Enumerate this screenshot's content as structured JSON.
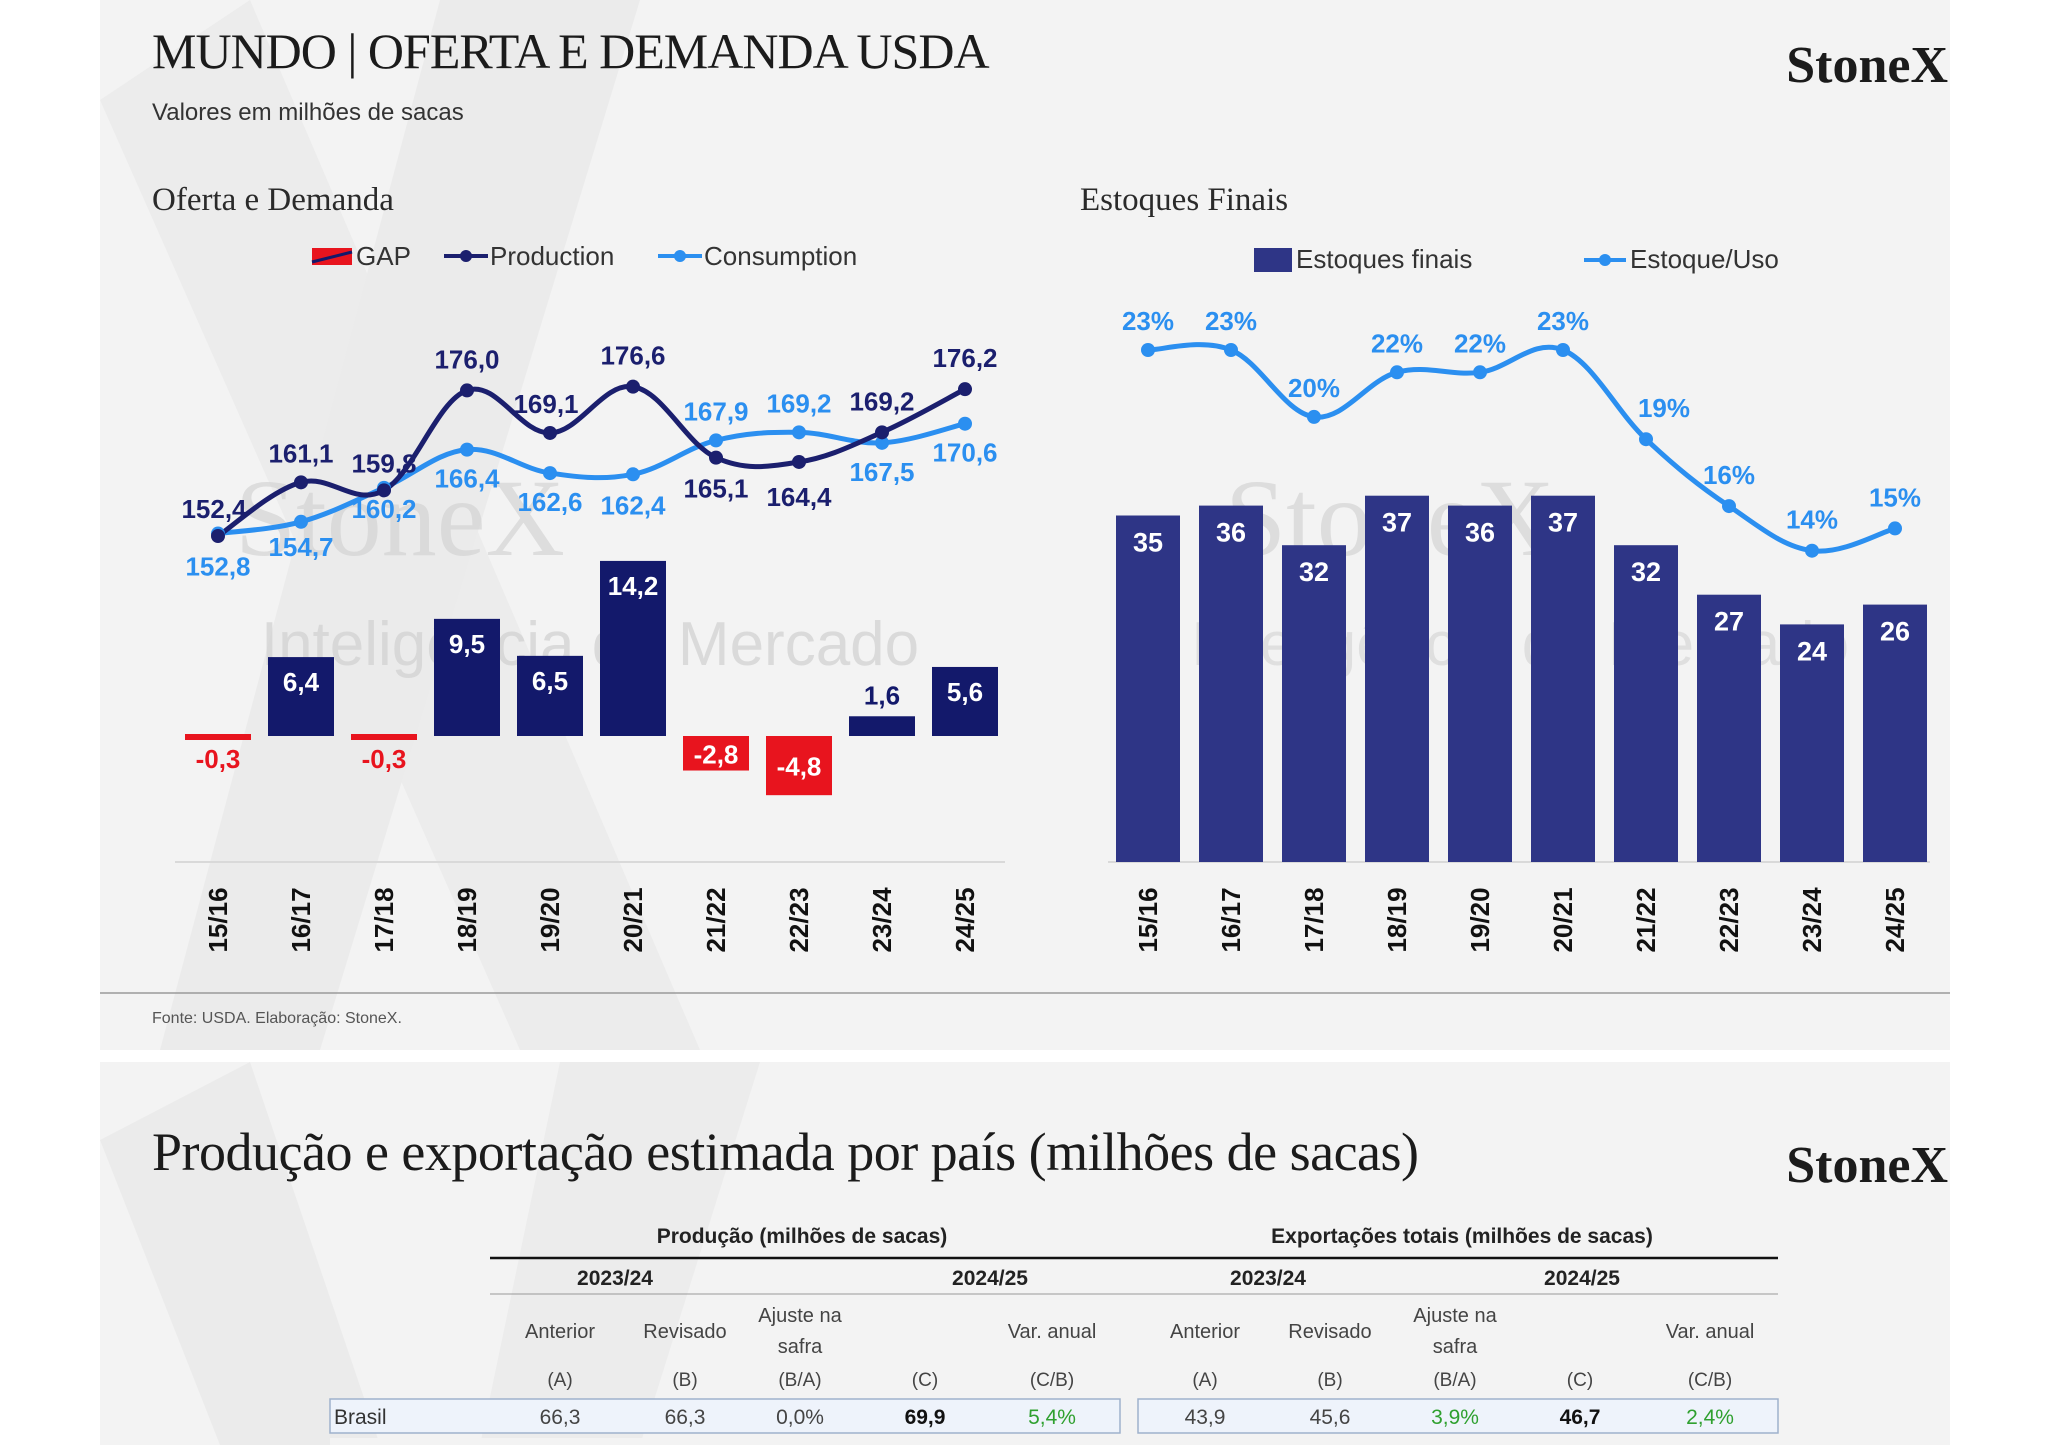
{
  "header": {
    "title": "MUNDO | OFERTA E DEMANDA USDA",
    "subtitle": "Valores em milhões de sacas",
    "brand": "StoneX",
    "watermark_brand": "StoneX",
    "watermark_tagline": "Inteligência de Mercado"
  },
  "source_note": "Fonte: USDA. Elaboração: StoneX.",
  "colors": {
    "production": "#1b1f6e",
    "consumption": "#2b8ff0",
    "gap_positive": "#13196b",
    "gap_negative": "#e8141e",
    "stocks_bar": "#2e3586"
  },
  "chart_data": [
    {
      "type": "bar",
      "title": "Oferta e Demanda",
      "categories": [
        "15/16",
        "16/17",
        "17/18",
        "18/19",
        "19/20",
        "20/21",
        "21/22",
        "22/23",
        "23/24",
        "24/25"
      ],
      "series": [
        {
          "name": "GAP",
          "kind": "bar",
          "values": [
            -0.3,
            6.4,
            -0.3,
            9.5,
            6.5,
            14.2,
            -2.8,
            -4.8,
            1.6,
            5.6
          ],
          "labels": [
            "-0,3",
            "6,4",
            "-0,3",
            "9,5",
            "6,5",
            "14,2",
            "-2,8",
            "-4,8",
            "1,6",
            "5,6"
          ]
        },
        {
          "name": "Production",
          "kind": "line",
          "values": [
            152.4,
            161.1,
            159.8,
            176.0,
            169.1,
            176.6,
            165.1,
            164.4,
            169.2,
            176.2
          ],
          "labels": [
            "152,4",
            "161,1",
            "159,8",
            "176,0",
            "169,1",
            "176,6",
            "165,1",
            "164,4",
            "169,2",
            "176,2"
          ]
        },
        {
          "name": "Consumption",
          "kind": "line",
          "values": [
            152.8,
            154.7,
            160.2,
            166.4,
            162.6,
            162.4,
            167.9,
            169.2,
            167.5,
            170.6
          ],
          "labels": [
            "152,8",
            "154,7",
            "160,2",
            "166,4",
            "162,6",
            "162,4",
            "167,9",
            "169,2",
            "167,5",
            "170,6"
          ]
        }
      ],
      "legend": [
        "GAP",
        "Production",
        "Consumption"
      ],
      "legend_position": "top",
      "grid": false
    },
    {
      "type": "bar",
      "title": "Estoques Finais",
      "categories": [
        "15/16",
        "16/17",
        "17/18",
        "18/19",
        "19/20",
        "20/21",
        "21/22",
        "22/23",
        "23/24",
        "24/25"
      ],
      "series": [
        {
          "name": "Estoques finais",
          "kind": "bar",
          "values": [
            35,
            36,
            32,
            37,
            36,
            37,
            32,
            27,
            24,
            26
          ],
          "labels": [
            "35",
            "36",
            "32",
            "37",
            "36",
            "37",
            "32",
            "27",
            "24",
            "26"
          ]
        },
        {
          "name": "Estoque/Uso",
          "kind": "line",
          "values": [
            23,
            23,
            20,
            22,
            22,
            23,
            19,
            16,
            14,
            15
          ],
          "labels": [
            "23%",
            "23%",
            "20%",
            "22%",
            "22%",
            "23%",
            "19%",
            "16%",
            "14%",
            "15%"
          ]
        }
      ],
      "legend": [
        "Estoques finais",
        "Estoque/Uso"
      ],
      "legend_position": "top",
      "grid": false
    }
  ],
  "section2": {
    "title": "Produção e exportação estimada por país (milhões de sacas)",
    "brand": "StoneX"
  },
  "table": {
    "group_headers": [
      "Produção  (milhões de sacas)",
      "Exportações totais (milhões de sacas)"
    ],
    "season_headers": [
      "2023/24",
      "2024/25",
      "2023/24",
      "2024/25"
    ],
    "columns": [
      {
        "label": "Anterior",
        "code": "(A)"
      },
      {
        "label": "Revisado",
        "code": "(B)"
      },
      {
        "label": "Ajuste na safra",
        "code": "(B/A)"
      },
      {
        "label": "",
        "code": "(C)"
      },
      {
        "label": "Var. anual",
        "code": "(C/B)"
      },
      {
        "label": "Anterior",
        "code": "(A)"
      },
      {
        "label": "Revisado",
        "code": "(B)"
      },
      {
        "label": "Ajuste na safra",
        "code": "(B/A)"
      },
      {
        "label": "",
        "code": "(C)"
      },
      {
        "label": "Var. anual",
        "code": "(C/B)"
      }
    ],
    "rows": [
      {
        "country": "Brasil",
        "cells": [
          "66,3",
          "66,3",
          "0,0%",
          "69,9",
          "5,4%",
          "43,9",
          "45,6",
          "3,9%",
          "46,7",
          "2,4%"
        ]
      }
    ]
  }
}
